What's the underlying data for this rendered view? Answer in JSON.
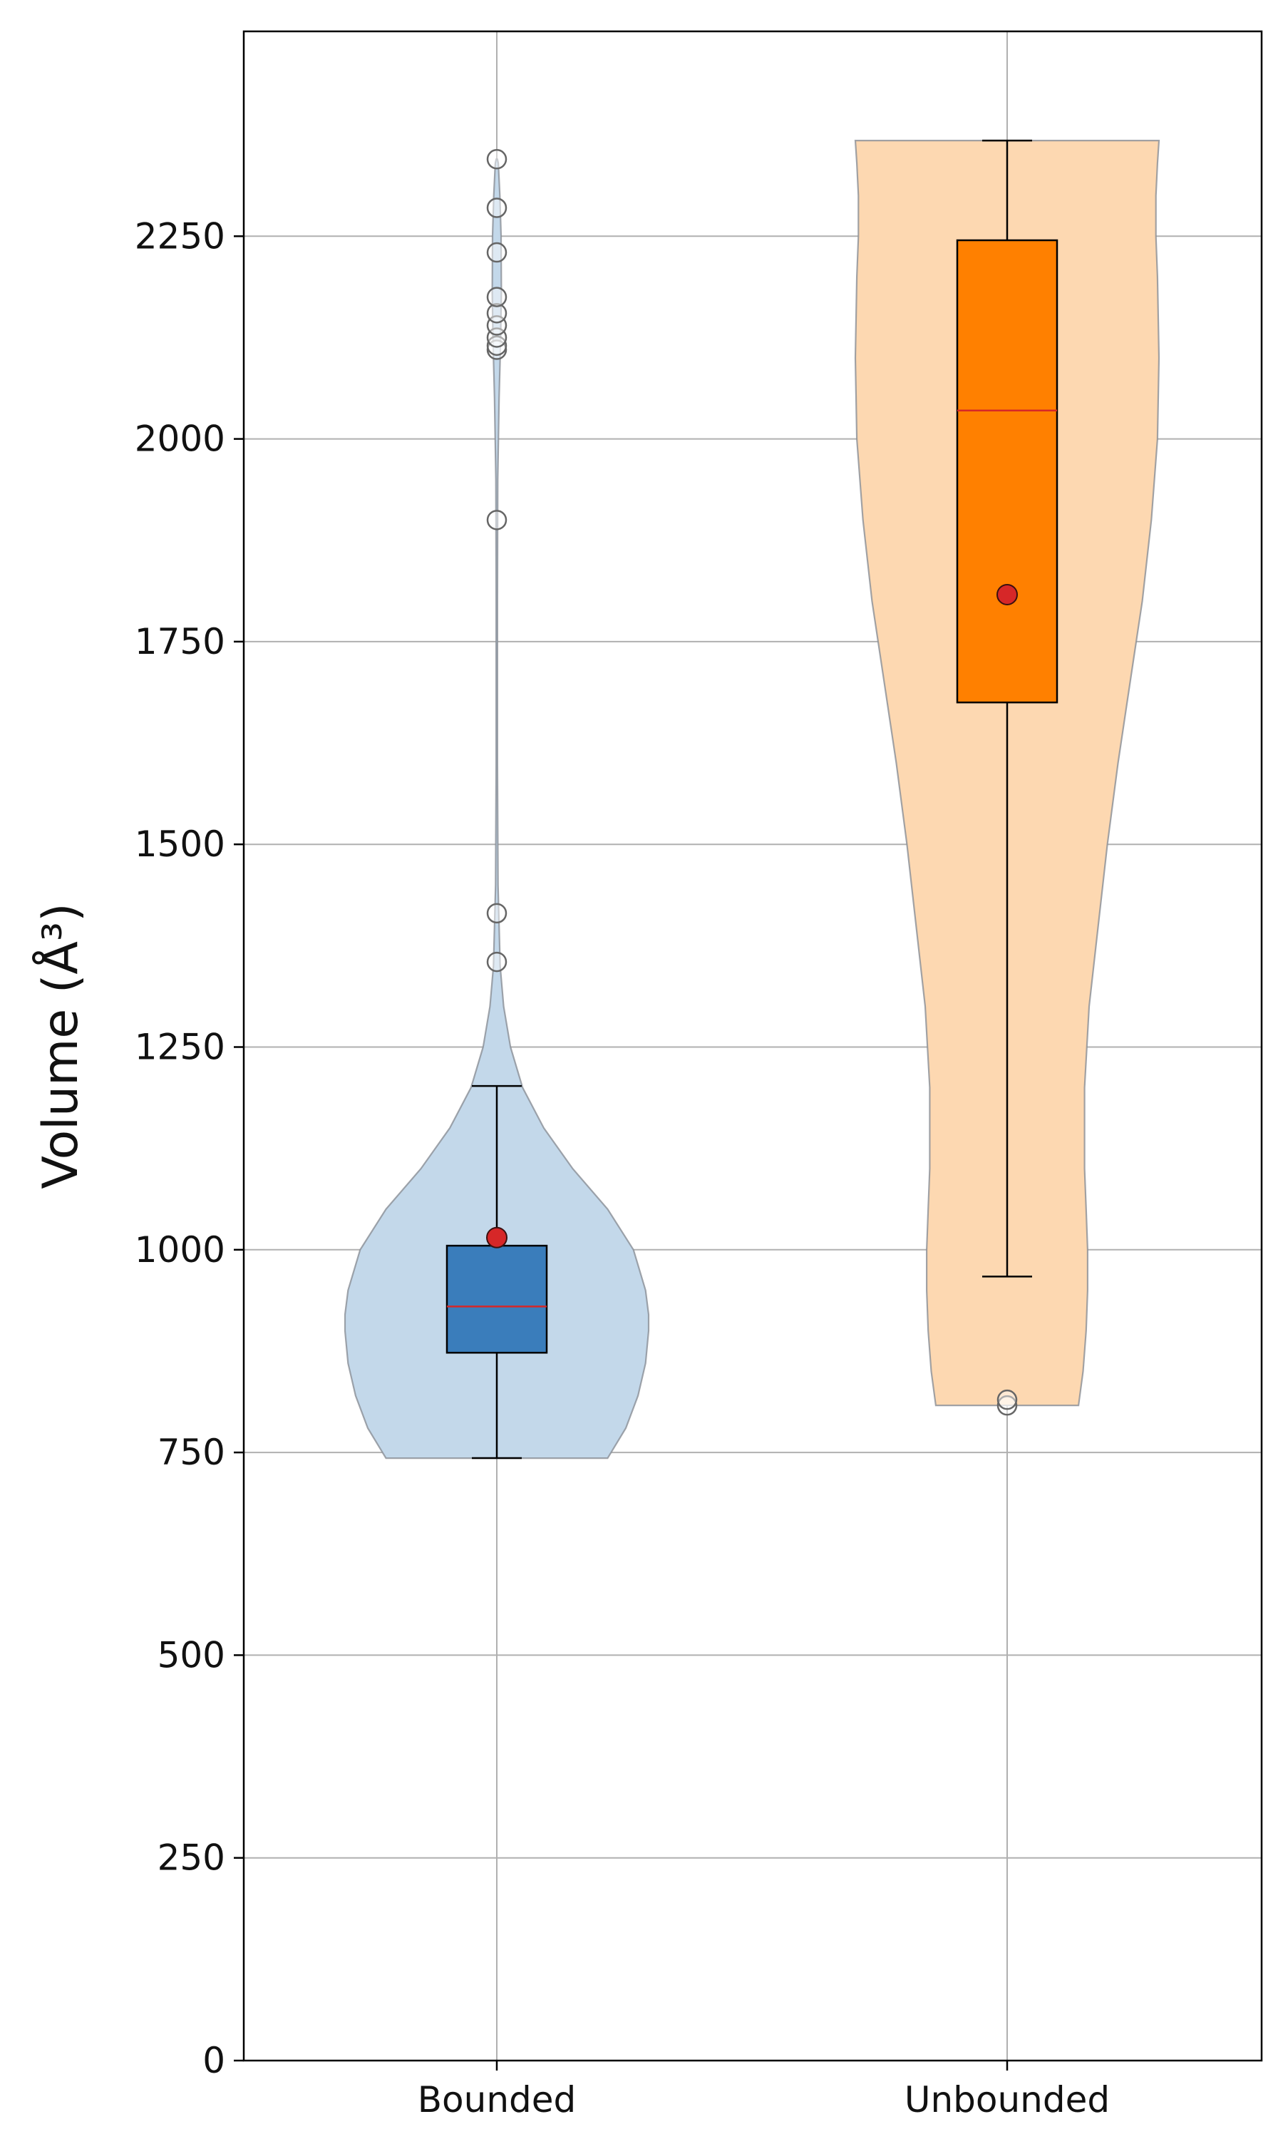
{
  "chart_data": {
    "type": "violin",
    "title": "",
    "xlabel": "",
    "ylabel": "Volume (Å³)",
    "ylim": [
      0,
      2500
    ],
    "yticks": [
      0,
      250,
      500,
      750,
      1000,
      1250,
      1500,
      1750,
      2000,
      2250
    ],
    "grid": true,
    "categories": [
      "Bounded",
      "Unbounded"
    ],
    "series": [
      {
        "category": "Bounded",
        "violin_color": "#c3d8ea",
        "box_color": "#3a7dbb",
        "stats": {
          "whisker_low": 743,
          "q1": 873,
          "median": 930,
          "q3": 1005,
          "whisker_high": 1202,
          "mean": 1015
        },
        "outliers": [
          1355,
          1415,
          1900,
          2110,
          2115,
          2125,
          2140,
          2155,
          2175,
          2230,
          2285,
          2345
        ],
        "density_profile": [
          [
            743,
            0.73
          ],
          [
            780,
            0.85
          ],
          [
            820,
            0.93
          ],
          [
            860,
            0.98
          ],
          [
            900,
            1.0
          ],
          [
            920,
            1.0
          ],
          [
            950,
            0.98
          ],
          [
            1000,
            0.9
          ],
          [
            1050,
            0.73
          ],
          [
            1100,
            0.5
          ],
          [
            1150,
            0.31
          ],
          [
            1200,
            0.17
          ],
          [
            1250,
            0.09
          ],
          [
            1300,
            0.045
          ],
          [
            1350,
            0.022
          ],
          [
            1450,
            0.008
          ],
          [
            1600,
            0.004
          ],
          [
            1800,
            0.004
          ],
          [
            1950,
            0.006
          ],
          [
            2050,
            0.015
          ],
          [
            2120,
            0.025
          ],
          [
            2180,
            0.03
          ],
          [
            2250,
            0.028
          ],
          [
            2300,
            0.02
          ],
          [
            2340,
            0.01
          ],
          [
            2345,
            0.004
          ]
        ]
      },
      {
        "category": "Unbounded",
        "violin_color": "#fdd8b1",
        "box_color": "#ff8000",
        "stats": {
          "whisker_low": 967,
          "q1": 1675,
          "median": 2035,
          "q3": 2245,
          "whisker_high": 2368,
          "mean": 1808
        },
        "outliers": [
          808,
          815
        ],
        "density_profile": [
          [
            808,
            0.47
          ],
          [
            850,
            0.5
          ],
          [
            900,
            0.52
          ],
          [
            950,
            0.53
          ],
          [
            1000,
            0.53
          ],
          [
            1050,
            0.52
          ],
          [
            1100,
            0.51
          ],
          [
            1200,
            0.51
          ],
          [
            1300,
            0.54
          ],
          [
            1400,
            0.6
          ],
          [
            1500,
            0.66
          ],
          [
            1600,
            0.73
          ],
          [
            1700,
            0.81
          ],
          [
            1800,
            0.89
          ],
          [
            1900,
            0.95
          ],
          [
            2000,
            0.99
          ],
          [
            2100,
            1.0
          ],
          [
            2200,
            0.99
          ],
          [
            2250,
            0.98
          ],
          [
            2300,
            0.98
          ],
          [
            2340,
            0.99
          ],
          [
            2368,
            1.0
          ]
        ]
      }
    ]
  },
  "colors": {
    "median_line": "#d62728",
    "mean_marker": "#d62728",
    "grid": "#b0b0b0",
    "outlier_edge": "#666666"
  }
}
